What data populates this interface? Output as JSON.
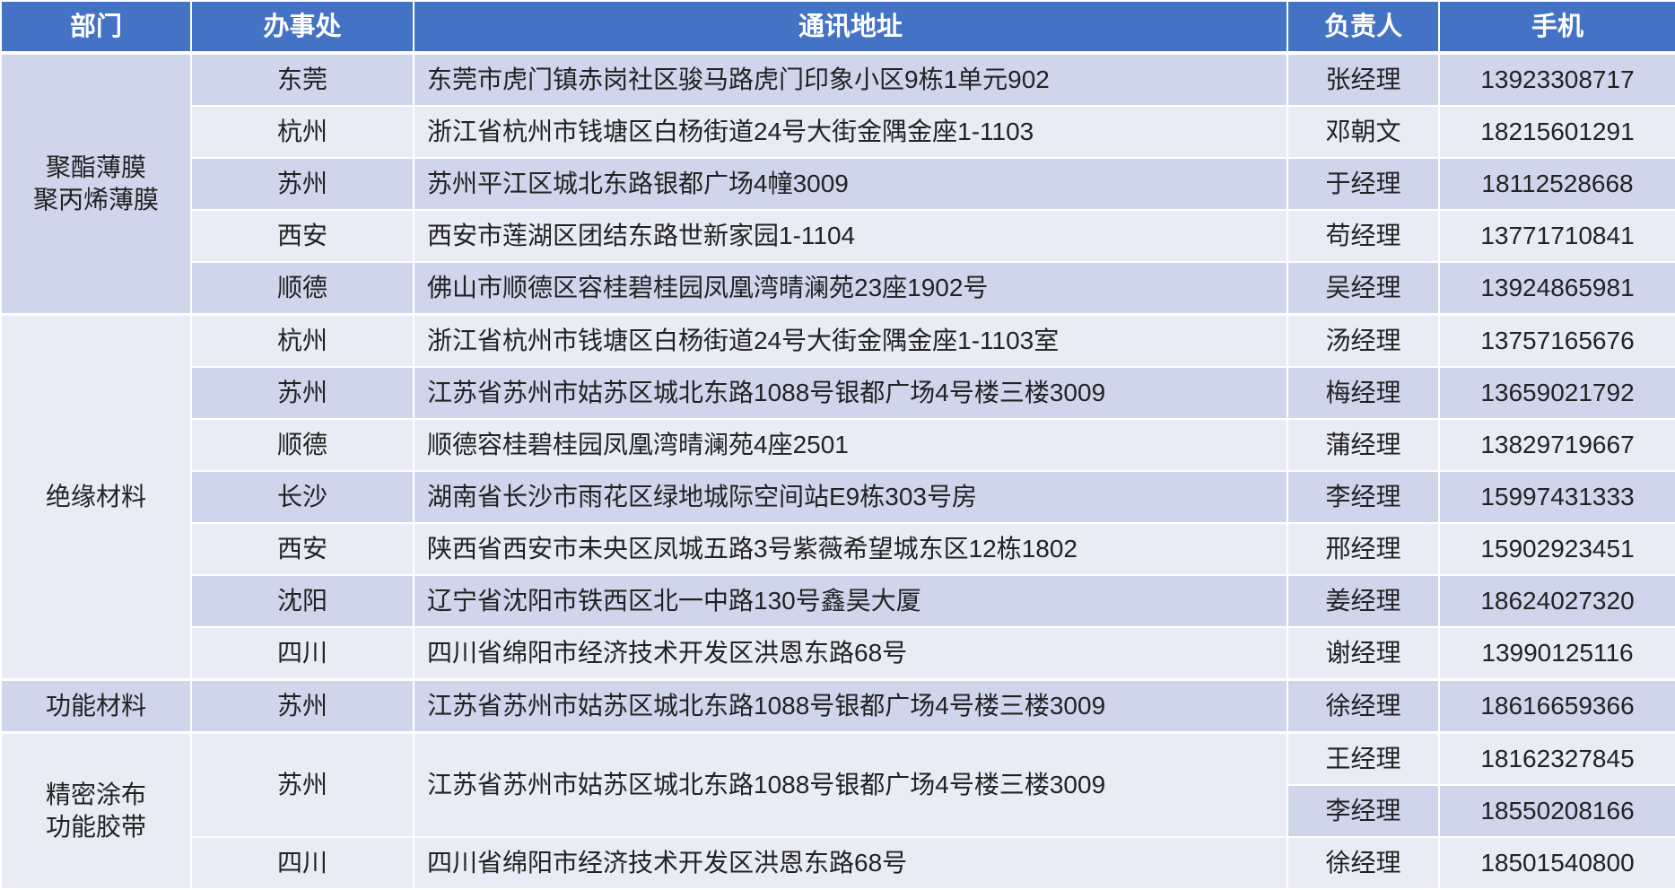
{
  "header": {
    "department": "部门",
    "office": "办事处",
    "address": "通讯地址",
    "manager": "负责人",
    "phone": "手机"
  },
  "colors": {
    "header": "#4472C4",
    "row_dark": "#CFD5EA",
    "row_light": "#E9EBF5",
    "header_text": "#FFFFFF"
  },
  "departments": [
    {
      "name": "聚酯薄膜\n聚丙烯薄膜",
      "offices": [
        {
          "city": "东莞",
          "address": "东莞市虎门镇赤岗社区骏马路虎门印象小区9栋1单元902",
          "contacts": [
            {
              "manager": "张经理",
              "phone": "13923308717"
            }
          ]
        },
        {
          "city": "杭州",
          "address": "浙江省杭州市钱塘区白杨街道24号大街金隅金座1-1103",
          "contacts": [
            {
              "manager": "邓朝文",
              "phone": "18215601291"
            }
          ]
        },
        {
          "city": "苏州",
          "address": "苏州平江区城北东路银都广场4幢3009",
          "contacts": [
            {
              "manager": "于经理",
              "phone": "18112528668"
            }
          ]
        },
        {
          "city": "西安",
          "address": "西安市莲湖区团结东路世新家园1-1104",
          "contacts": [
            {
              "manager": "苟经理",
              "phone": "13771710841"
            }
          ]
        },
        {
          "city": "顺德",
          "address": "佛山市顺德区容桂碧桂园凤凰湾晴澜苑23座1902号",
          "contacts": [
            {
              "manager": "吴经理",
              "phone": "13924865981"
            }
          ]
        }
      ]
    },
    {
      "name": "绝缘材料",
      "offices": [
        {
          "city": "杭州",
          "address": "浙江省杭州市钱塘区白杨街道24号大街金隅金座1-1103室",
          "contacts": [
            {
              "manager": "汤经理",
              "phone": "13757165676"
            }
          ]
        },
        {
          "city": "苏州",
          "address": "江苏省苏州市姑苏区城北东路1088号银都广场4号楼三楼3009",
          "contacts": [
            {
              "manager": "梅经理",
              "phone": "13659021792"
            }
          ]
        },
        {
          "city": "顺德",
          "address": "顺德容桂碧桂园凤凰湾晴澜苑4座2501",
          "contacts": [
            {
              "manager": "蒲经理",
              "phone": "13829719667"
            }
          ]
        },
        {
          "city": "长沙",
          "address": "湖南省长沙市雨花区绿地城际空间站E9栋303号房",
          "contacts": [
            {
              "manager": "李经理",
              "phone": "15997431333"
            }
          ]
        },
        {
          "city": "西安",
          "address": "陕西省西安市未央区凤城五路3号紫薇希望城东区12栋1802",
          "contacts": [
            {
              "manager": "邢经理",
              "phone": "15902923451"
            }
          ]
        },
        {
          "city": "沈阳",
          "address": "辽宁省沈阳市铁西区北一中路130号鑫昊大厦",
          "contacts": [
            {
              "manager": "姜经理",
              "phone": "18624027320"
            }
          ]
        },
        {
          "city": "四川",
          "address": "四川省绵阳市经济技术开发区洪恩东路68号",
          "contacts": [
            {
              "manager": "谢经理",
              "phone": "13990125116"
            }
          ]
        }
      ]
    },
    {
      "name": "功能材料",
      "offices": [
        {
          "city": "苏州",
          "address": "江苏省苏州市姑苏区城北东路1088号银都广场4号楼三楼3009",
          "contacts": [
            {
              "manager": "徐经理",
              "phone": "18616659366"
            }
          ]
        }
      ]
    },
    {
      "name": "精密涂布\n功能胶带",
      "offices": [
        {
          "city": "苏州",
          "address": "江苏省苏州市姑苏区城北东路1088号银都广场4号楼三楼3009",
          "contacts": [
            {
              "manager": "王经理",
              "phone": "18162327845"
            },
            {
              "manager": "李经理",
              "phone": "18550208166"
            }
          ]
        },
        {
          "city": "四川",
          "address": "四川省绵阳市经济技术开发区洪恩东路68号",
          "contacts": [
            {
              "manager": "徐经理",
              "phone": "18501540800"
            }
          ]
        }
      ]
    }
  ]
}
